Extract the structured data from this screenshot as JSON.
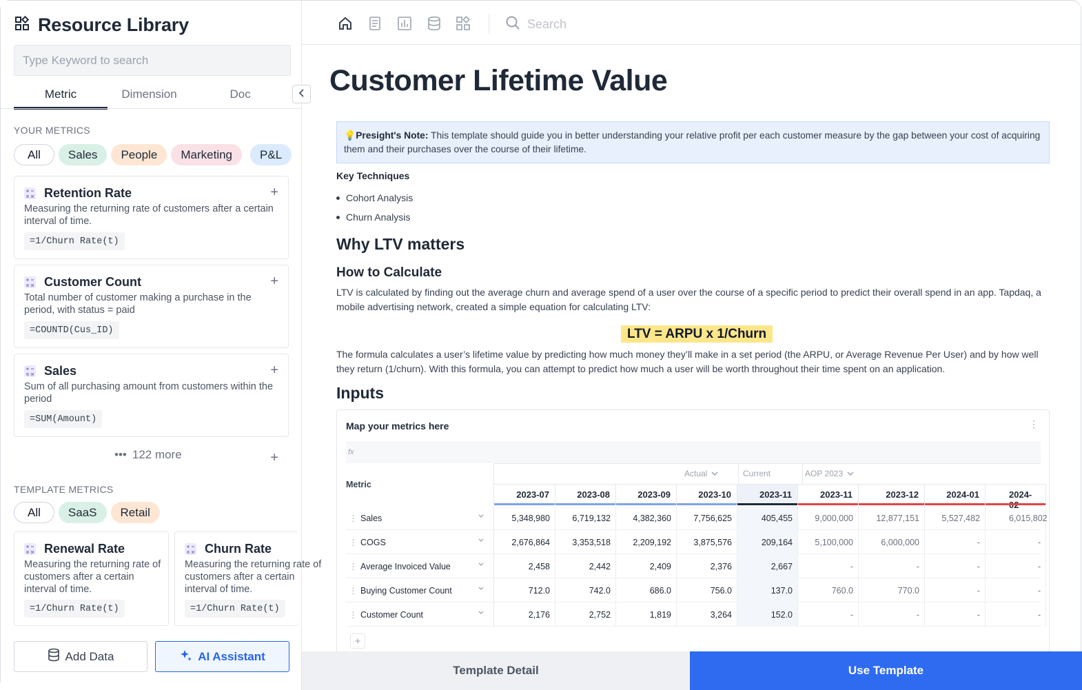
{
  "sidebar": {
    "title": "Resource Library",
    "search_placeholder": "Type Keyword to search",
    "tabs": [
      {
        "label": "Metric"
      },
      {
        "label": "Dimension"
      },
      {
        "label": "Doc"
      }
    ],
    "your_metrics_label": "YOUR METRICS",
    "your_metric_chips": [
      {
        "label": "All",
        "bg": "#ffffff"
      },
      {
        "label": "Sales",
        "bg": "#d9f0e6"
      },
      {
        "label": "People",
        "bg": "#fde7d4"
      },
      {
        "label": "Marketing",
        "bg": "#f9e1e6"
      },
      {
        "label": "P&L",
        "bg": "#dbeafe"
      }
    ],
    "metrics": [
      {
        "title": "Retention Rate",
        "desc": "Measuring the returning rate of customers after a certain interval of time.",
        "formula": "=1/Churn Rate(t)"
      },
      {
        "title": "Customer Count",
        "desc": "Total number of customer making a purchase in the period, with status = paid",
        "formula": "=COUNTD(Cus_ID)"
      },
      {
        "title": "Sales",
        "desc": "Sum of all purchasing amount from customers within the period",
        "formula": "=SUM(Amount)"
      }
    ],
    "more_label": "122 more",
    "template_metrics_label": "TEMPLATE METRICS",
    "template_chips": [
      {
        "label": "All",
        "bg": "#ffffff"
      },
      {
        "label": "SaaS",
        "bg": "#d9f0e6"
      },
      {
        "label": "Retail",
        "bg": "#fde7d4"
      }
    ],
    "template_metrics": [
      {
        "title": "Renewal Rate",
        "desc": "Measuring the returning rate of customers after a certain interval of time.",
        "formula": "=1/Churn Rate(t)"
      },
      {
        "title": "Churn Rate",
        "desc": "Measuring the returning rate of customers after a certain interval of time.",
        "formula": "=1/Churn Rate(t)"
      }
    ],
    "add_data_label": "Add Data",
    "ai_assistant_label": "AI Assistant"
  },
  "topbar": {
    "icons": [
      "home-icon",
      "document-icon",
      "chart-icon",
      "database-icon",
      "grid-icon"
    ],
    "search_placeholder": "Search"
  },
  "doc": {
    "title": "Customer Lifetime Value",
    "note_label": "Presight's Note:",
    "note_text": " This template should guide you in better understanding your relative profit per each customer measure by the gap between your cost of acquiring them and their purchases over the course of their lifetime.",
    "key_techniques_label": "Key Techniques",
    "techniques": [
      "Cohort Analysis",
      "Churn Analysis"
    ],
    "why_heading": "Why LTV matters",
    "how_heading": "How to Calculate",
    "how_text": "LTV is calculated by finding out the average churn and average spend of a user over the course of a specific period to predict their overall spend in an app. Tapdaq, a mobile advertising network, created a simple equation for calculating LTV:",
    "formula": "LTV = ARPU x 1/Churn",
    "formula_text": "The formula calculates a user’s lifetime value by predicting how much money they’ll make in a set period (the ARPU, or Average Revenue Per User) and by how well they return (1/churn). With this formula, you can attempt to predict how much a user will be worth throughout their time spent on an application.",
    "inputs_heading": "Inputs"
  },
  "inputs": {
    "title": "Map your metrics here",
    "fx_label": "fx",
    "metric_header": "Metric",
    "groups": {
      "actual": "Actual",
      "current": "Current",
      "aop": "AOP 2023"
    },
    "columns": [
      "2023-07",
      "2023-08",
      "2023-09",
      "2023-10",
      "2023-11",
      "2023-11",
      "2023-12",
      "2024-01",
      "2024-02"
    ],
    "rows": [
      {
        "name": "Sales",
        "values": [
          "5,348,980",
          "6,719,132",
          "4,382,360",
          "7,756,625",
          "405,455",
          "9,000,000",
          "12,877,151",
          "5,527,482",
          "6,015,802"
        ]
      },
      {
        "name": "COGS",
        "values": [
          "2,676,864",
          "3,353,518",
          "2,209,192",
          "3,875,576",
          "209,164",
          "5,100,000",
          "6,000,000",
          "-",
          "-"
        ]
      },
      {
        "name": "Average Invoiced Value",
        "values": [
          "2,458",
          "2,442",
          "2,409",
          "2,376",
          "2,667",
          "-",
          "-",
          "-",
          "-"
        ]
      },
      {
        "name": "Buying Customer Count",
        "values": [
          "712.0",
          "742.0",
          "686.0",
          "756.0",
          "137.0",
          "760.0",
          "770.0",
          "-",
          "-"
        ]
      },
      {
        "name": "Customer Count",
        "values": [
          "2,176",
          "2,752",
          "1,819",
          "3,264",
          "152.0",
          "-",
          "-",
          "-",
          "-"
        ]
      }
    ]
  },
  "footer": {
    "template_detail_label": "Template Detail",
    "use_template_label": "Use Template"
  },
  "colors": {
    "accent": "#2f6bf0",
    "actual_bar": "#7ea6e8",
    "current_bar": "#1f2937",
    "aop_bar": "#e04545"
  }
}
